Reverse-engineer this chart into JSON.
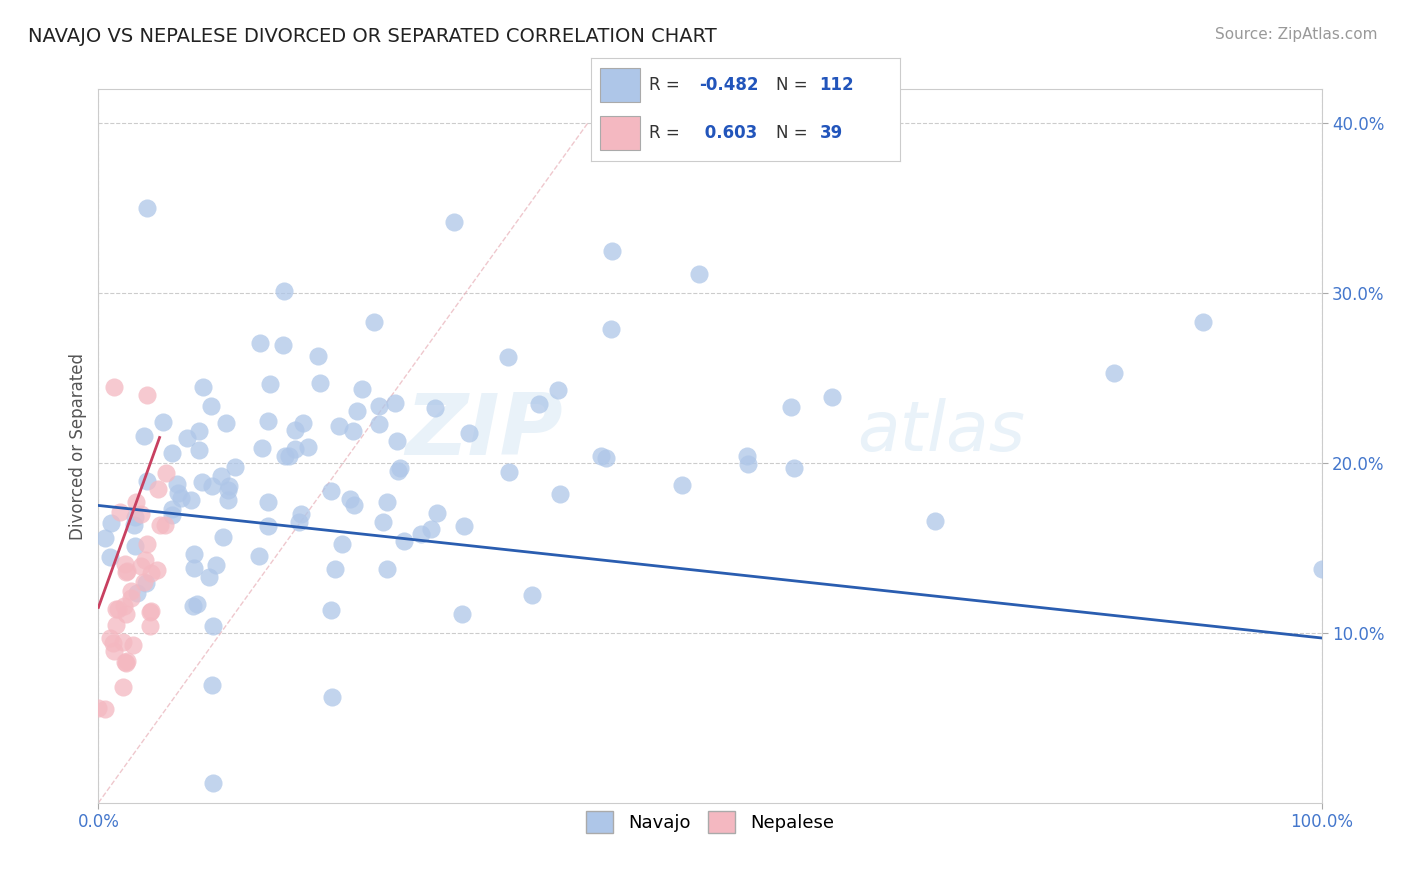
{
  "title": "NAVAJO VS NEPALESE DIVORCED OR SEPARATED CORRELATION CHART",
  "source": "Source: ZipAtlas.com",
  "ylabel": "Divorced or Separated",
  "xlim": [
    0.0,
    1.0
  ],
  "ylim": [
    0.0,
    0.42
  ],
  "ytick_values": [
    0.1,
    0.2,
    0.3,
    0.4
  ],
  "navajo_color": "#aec6e8",
  "nepalese_color": "#f4b8c1",
  "trend_navajo_color": "#2a5db0",
  "trend_nepalese_color": "#c84060",
  "R_navajo": -0.482,
  "N_navajo": 112,
  "R_nepalese": 0.603,
  "N_nepalese": 39,
  "background_color": "#ffffff",
  "grid_color": "#cccccc",
  "watermark_color": "#c8dff0",
  "navajo_trend_y0": 0.175,
  "navajo_trend_y1": 0.097,
  "nepalese_trend_x0": 0.0,
  "nepalese_trend_y0": 0.115,
  "nepalese_trend_x1": 0.05,
  "nepalese_trend_y1": 0.215,
  "diag_line_color": "#e8b0b8",
  "title_fontsize": 14,
  "tick_fontsize": 12,
  "ylabel_fontsize": 12,
  "source_fontsize": 11,
  "legend_fontsize": 13
}
